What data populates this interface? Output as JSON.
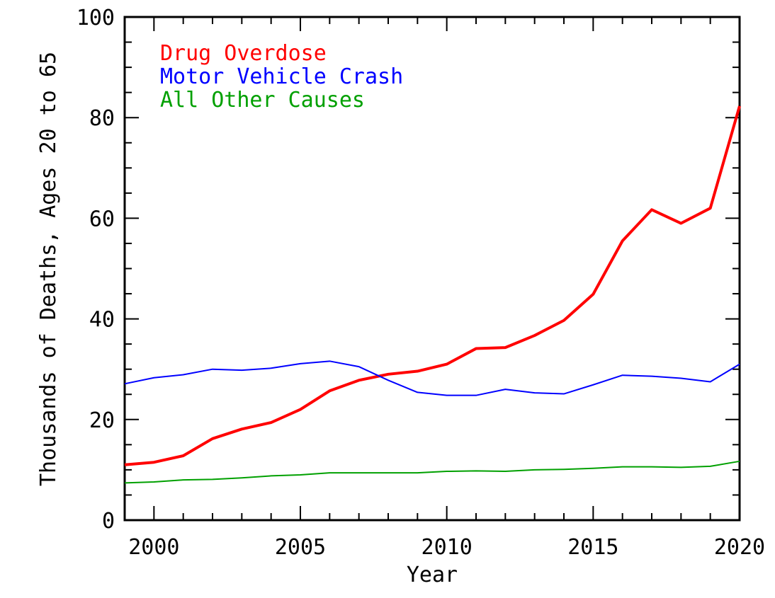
{
  "chart_data": {
    "type": "line",
    "xlabel": "Year",
    "ylabel": "Thousands of Deaths, Ages 20 to 65",
    "xlim": [
      1999,
      2020
    ],
    "ylim": [
      0,
      100
    ],
    "xticks": [
      2000,
      2005,
      2010,
      2015,
      2020
    ],
    "yticks": [
      0,
      20,
      40,
      60,
      80,
      100
    ],
    "grid": false,
    "legend_position": "top-left",
    "x": [
      1999,
      2000,
      2001,
      2002,
      2003,
      2004,
      2005,
      2006,
      2007,
      2008,
      2009,
      2010,
      2011,
      2012,
      2013,
      2014,
      2015,
      2016,
      2017,
      2018,
      2019,
      2020
    ],
    "series": [
      {
        "name": "Drug Overdose",
        "color": "#ff0000",
        "values": [
          11.0,
          11.5,
          12.8,
          16.2,
          18.1,
          19.4,
          22.0,
          25.7,
          27.8,
          29.0,
          29.6,
          31.0,
          34.1,
          34.3,
          36.7,
          39.7,
          44.9,
          55.5,
          61.7,
          59.0,
          62.0,
          82.3
        ]
      },
      {
        "name": "Motor Vehicle Crash",
        "color": "#0000ff",
        "values": [
          27.1,
          28.3,
          28.9,
          30.0,
          29.8,
          30.2,
          31.1,
          31.6,
          30.5,
          27.8,
          25.4,
          24.8,
          24.8,
          26.0,
          25.3,
          25.1,
          26.9,
          28.8,
          28.6,
          28.2,
          27.5,
          31.0
        ]
      },
      {
        "name": "All Other Causes",
        "color": "#00a000",
        "values": [
          7.4,
          7.6,
          8.0,
          8.1,
          8.4,
          8.8,
          9.0,
          9.4,
          9.4,
          9.4,
          9.4,
          9.7,
          9.8,
          9.7,
          10.0,
          10.1,
          10.3,
          10.6,
          10.6,
          10.5,
          10.7,
          11.7
        ]
      }
    ]
  }
}
